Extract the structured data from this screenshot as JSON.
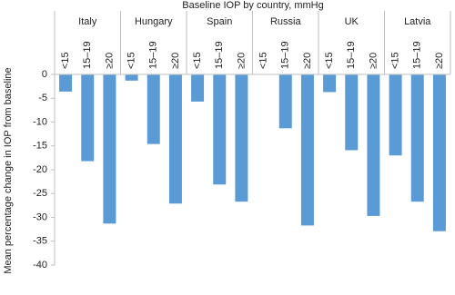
{
  "chart_data": {
    "type": "grouped-bar",
    "title": "Baseline IOP by country, mmHg",
    "y_label": "Mean percentage change in IOP from baseline",
    "subcategories": [
      "<15",
      "15–19",
      "≥20"
    ],
    "groups": [
      {
        "name": "Italy",
        "values": [
          -3.6,
          -18.2,
          -31.3
        ]
      },
      {
        "name": "Hungary",
        "values": [
          -1.3,
          -14.6,
          -27.1
        ]
      },
      {
        "name": "Spain",
        "values": [
          -5.7,
          -23.1,
          -26.7
        ]
      },
      {
        "name": "Russia",
        "values": [
          null,
          -11.3,
          -31.7
        ]
      },
      {
        "name": "UK",
        "values": [
          -3.7,
          -15.9,
          -29.7
        ]
      },
      {
        "name": "Latvia",
        "values": [
          -17.0,
          -26.7,
          -32.9
        ]
      }
    ],
    "color": "#5b9bd5",
    "ylim": [
      -40,
      0
    ],
    "yticks": [
      0,
      -5,
      -10,
      -15,
      -20,
      -25,
      -30,
      -35,
      -40
    ]
  }
}
